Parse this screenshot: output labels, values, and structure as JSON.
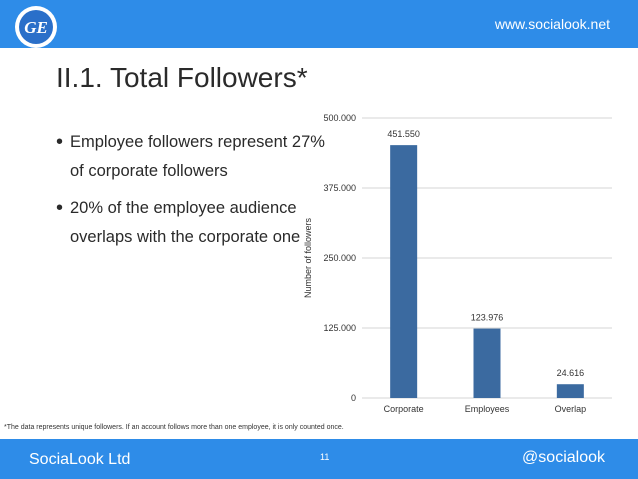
{
  "header": {
    "url": "www.socialook.net"
  },
  "logo": {
    "text": "GE",
    "icon": "ge-logo"
  },
  "title": "II.1. Total Followers*",
  "bullets": [
    "Employee followers represent 27% of corporate followers",
    "20% of the employee audience overlaps with the corporate one"
  ],
  "footnote": "*The data represents unique followers. If an account follows more than one employee, it is only counted once.",
  "footer": {
    "company": "SociaLook Ltd",
    "page": "11",
    "handle": "@socialook"
  },
  "colors": {
    "accent": "#2e8ce8",
    "bar": "#3b6aa0",
    "text": "#2a2a2a"
  },
  "chart_data": {
    "type": "bar",
    "categories": [
      "Corporate",
      "Employees",
      "Overlap"
    ],
    "values": [
      451550,
      123976,
      24616
    ],
    "value_labels": [
      "451.550",
      "123.976",
      "24.616"
    ],
    "ylabel": "Number of followers",
    "ylim": [
      0,
      500000
    ],
    "yticks": [
      0,
      125000,
      250000,
      375000,
      500000
    ],
    "ytick_labels": [
      "0",
      "125.000",
      "250.000",
      "375.000",
      "500.000"
    ],
    "grid": true,
    "legend": "none"
  }
}
